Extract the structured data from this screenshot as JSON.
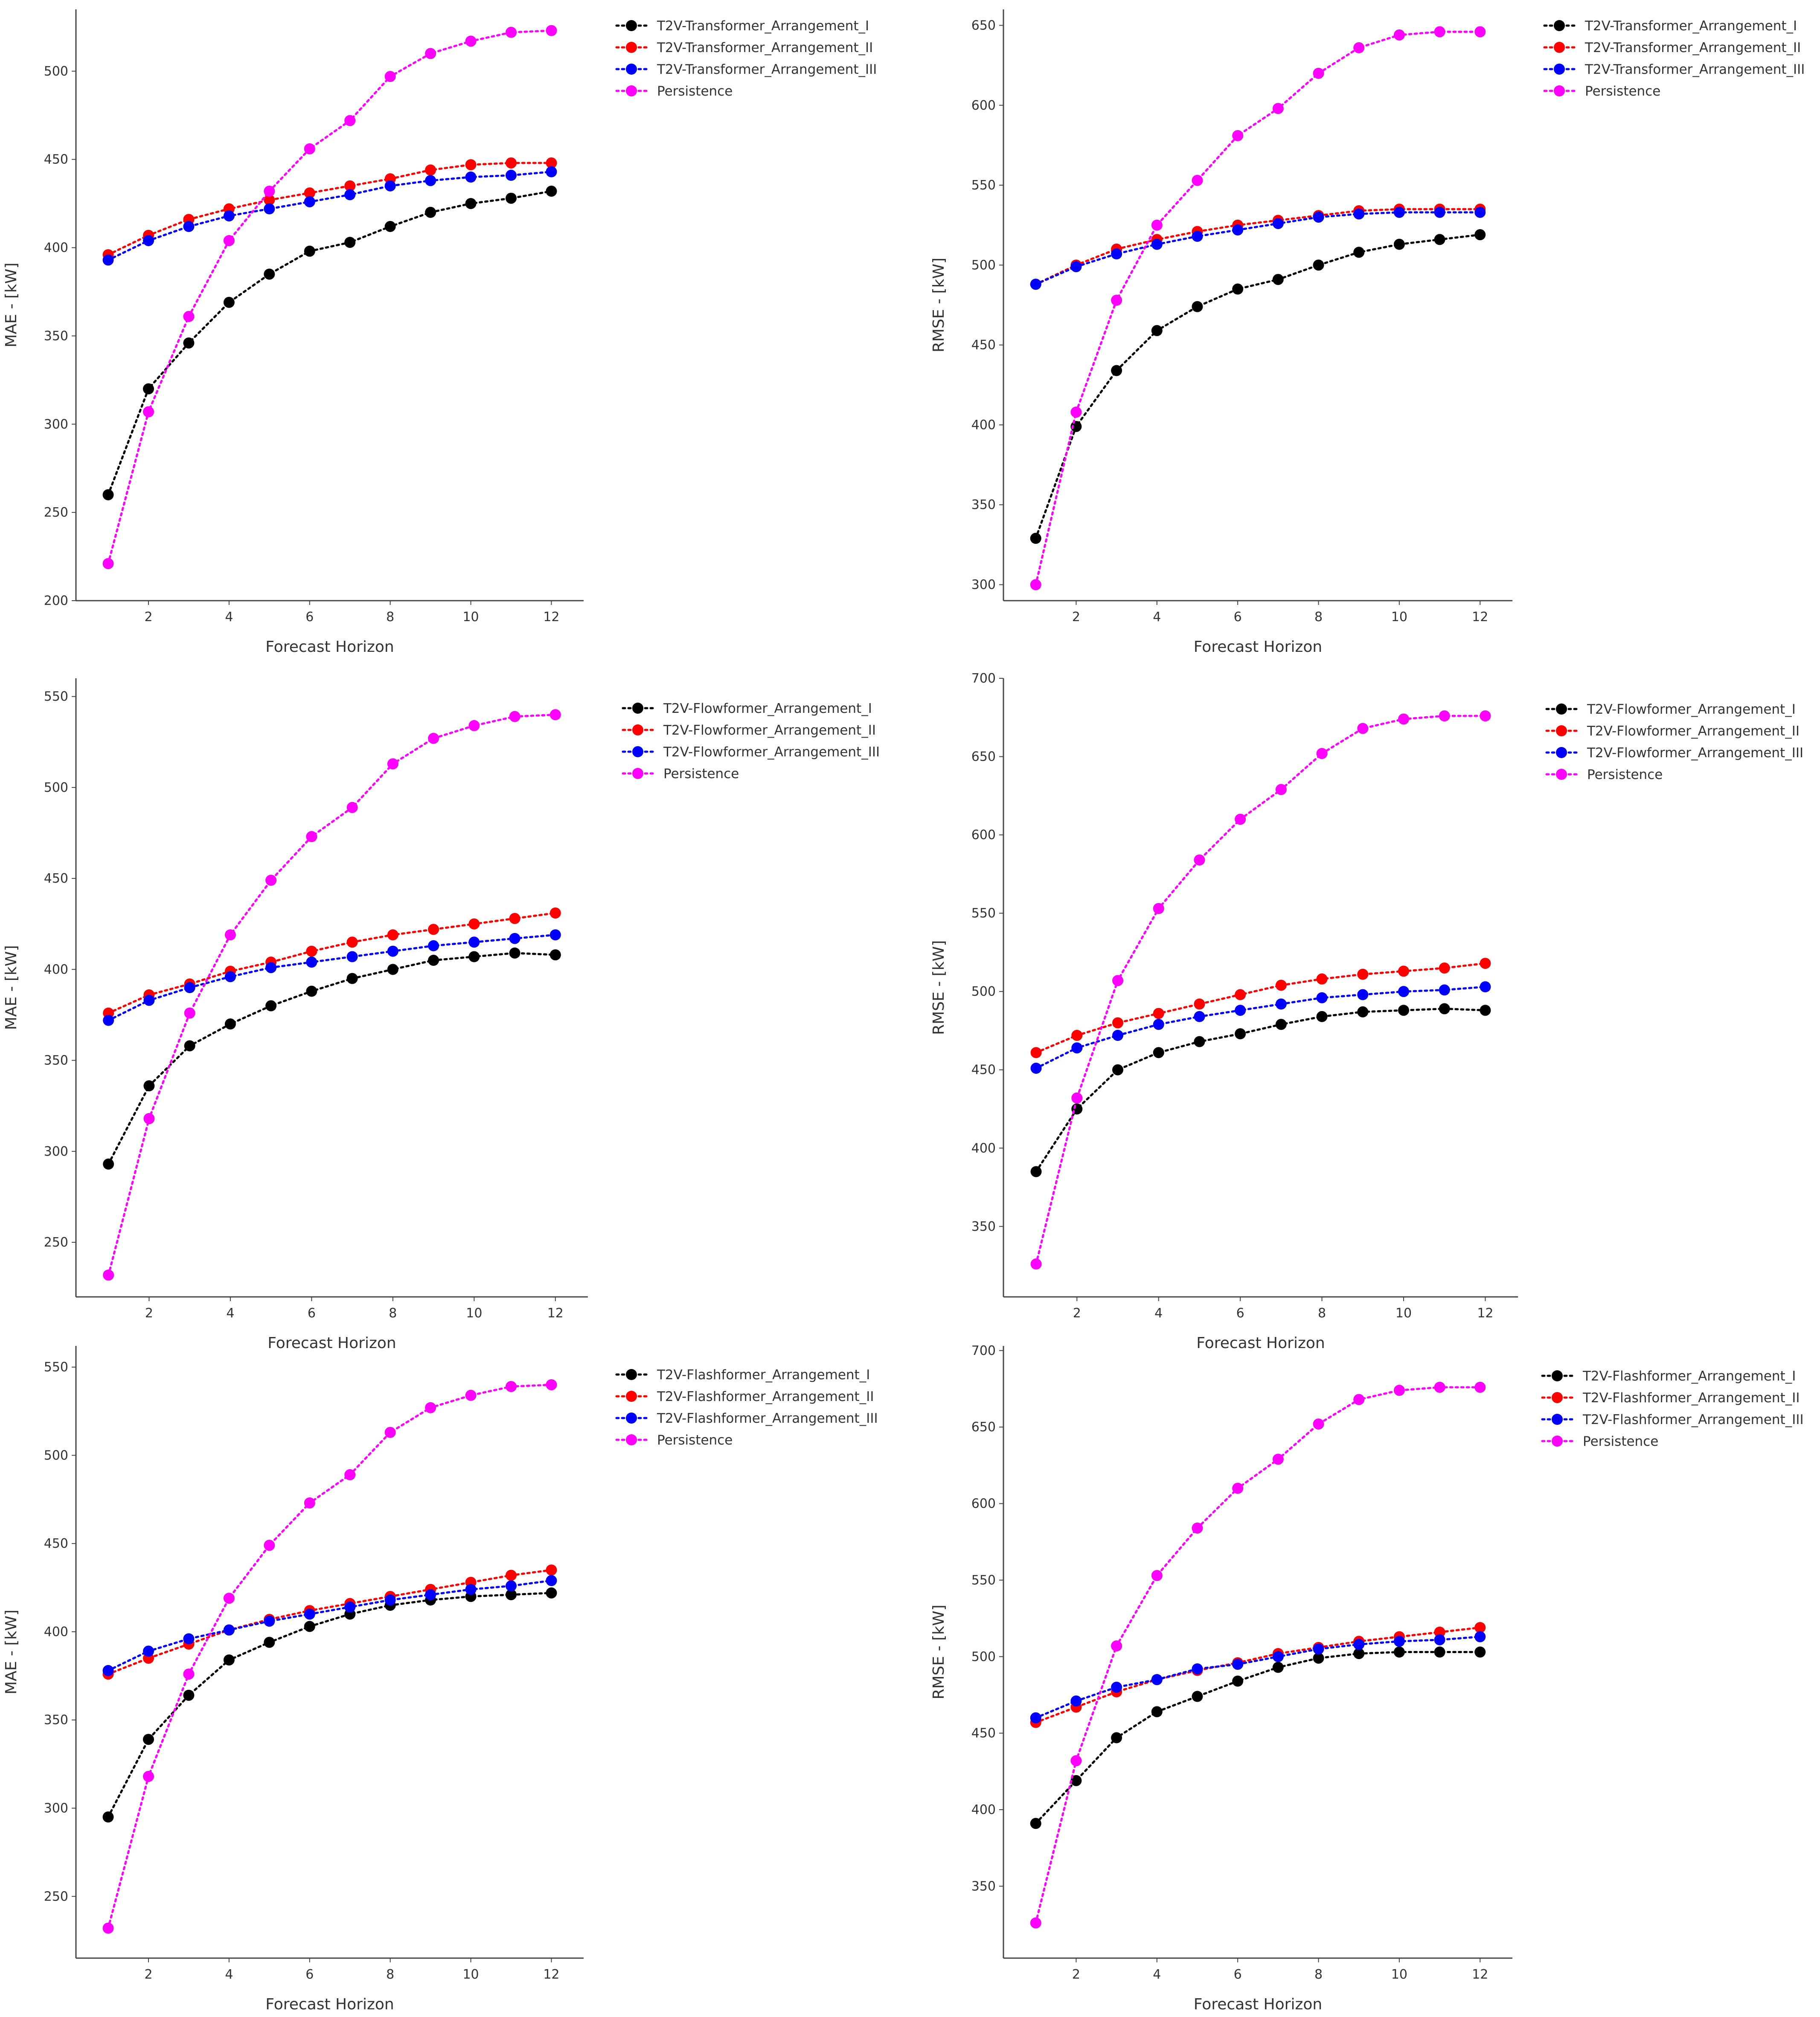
{
  "figure": {
    "background": "#ffffff",
    "axis_color": "#444444"
  },
  "series_styles": [
    {
      "color": "#000000",
      "dash": "dotted"
    },
    {
      "color": "#ff0000",
      "dash": "dotted"
    },
    {
      "color": "#0000ff",
      "dash": "dotted"
    },
    {
      "color": "#ff00ff",
      "dash": "dotted"
    }
  ],
  "chart_data": [
    {
      "type": "line",
      "x": [
        1,
        2,
        3,
        4,
        5,
        6,
        7,
        8,
        9,
        10,
        11,
        12
      ],
      "xlabel": "Forecast Horizon",
      "ylabel": "MAE - [kW]",
      "xlim": [
        0.2,
        12.8
      ],
      "ylim": [
        200,
        535
      ],
      "xticks": [
        2,
        4,
        6,
        8,
        10,
        12
      ],
      "yticks": [
        200,
        250,
        300,
        350,
        400,
        450,
        500
      ],
      "grid": false,
      "legend_position": "top-right-outside",
      "series": [
        {
          "name": "T2V-Transformer_Arrangement_I",
          "values": [
            260,
            320,
            346,
            369,
            385,
            398,
            403,
            412,
            420,
            425,
            428,
            432
          ]
        },
        {
          "name": "T2V-Transformer_Arrangement_II",
          "values": [
            396,
            407,
            416,
            422,
            427,
            431,
            435,
            439,
            444,
            447,
            448,
            448
          ]
        },
        {
          "name": "T2V-Transformer_Arrangement_III",
          "values": [
            393,
            404,
            412,
            418,
            422,
            426,
            430,
            435,
            438,
            440,
            441,
            443
          ]
        },
        {
          "name": "Persistence",
          "values": [
            221,
            307,
            361,
            404,
            432,
            456,
            472,
            497,
            510,
            517,
            522,
            523
          ]
        }
      ]
    },
    {
      "type": "line",
      "x": [
        1,
        2,
        3,
        4,
        5,
        6,
        7,
        8,
        9,
        10,
        11,
        12
      ],
      "xlabel": "Forecast Horizon",
      "ylabel": "RMSE - [kW]",
      "xlim": [
        0.2,
        12.8
      ],
      "ylim": [
        290,
        660
      ],
      "xticks": [
        2,
        4,
        6,
        8,
        10,
        12
      ],
      "yticks": [
        300,
        350,
        400,
        450,
        500,
        550,
        600,
        650
      ],
      "grid": false,
      "legend_position": "top-right-outside",
      "series": [
        {
          "name": "T2V-Transformer_Arrangement_I",
          "values": [
            329,
            399,
            434,
            459,
            474,
            485,
            491,
            500,
            508,
            513,
            516,
            519
          ]
        },
        {
          "name": "T2V-Transformer_Arrangement_II",
          "values": [
            488,
            500,
            510,
            516,
            521,
            525,
            528,
            531,
            534,
            535,
            535,
            535
          ]
        },
        {
          "name": "T2V-Transformer_Arrangement_III",
          "values": [
            488,
            499,
            507,
            513,
            518,
            522,
            526,
            530,
            532,
            533,
            533,
            533
          ]
        },
        {
          "name": "Persistence",
          "values": [
            300,
            408,
            478,
            525,
            553,
            581,
            598,
            620,
            636,
            644,
            646,
            646
          ]
        }
      ]
    },
    {
      "type": "line",
      "x": [
        1,
        2,
        3,
        4,
        5,
        6,
        7,
        8,
        9,
        10,
        11,
        12
      ],
      "xlabel": "Forecast Horizon",
      "ylabel": "MAE - [kW]",
      "xlim": [
        0.2,
        12.8
      ],
      "ylim": [
        220,
        560
      ],
      "xticks": [
        2,
        4,
        6,
        8,
        10,
        12
      ],
      "yticks": [
        250,
        300,
        350,
        400,
        450,
        500,
        550
      ],
      "grid": false,
      "legend_position": "top-right-outside",
      "series": [
        {
          "name": "T2V-Flowformer_Arrangement_I",
          "values": [
            293,
            336,
            358,
            370,
            380,
            388,
            395,
            400,
            405,
            407,
            409,
            408
          ]
        },
        {
          "name": "T2V-Flowformer_Arrangement_II",
          "values": [
            376,
            386,
            392,
            399,
            404,
            410,
            415,
            419,
            422,
            425,
            428,
            431
          ]
        },
        {
          "name": "T2V-Flowformer_Arrangement_III",
          "values": [
            372,
            383,
            390,
            396,
            401,
            404,
            407,
            410,
            413,
            415,
            417,
            419
          ]
        },
        {
          "name": "Persistence",
          "values": [
            232,
            318,
            376,
            419,
            449,
            473,
            489,
            513,
            527,
            534,
            539,
            540
          ]
        }
      ]
    },
    {
      "type": "line",
      "x": [
        1,
        2,
        3,
        4,
        5,
        6,
        7,
        8,
        9,
        10,
        11,
        12
      ],
      "xlabel": "Forecast Horizon",
      "ylabel": "RMSE - [kW]",
      "xlim": [
        0.2,
        12.8
      ],
      "ylim": [
        305,
        700
      ],
      "xticks": [
        2,
        4,
        6,
        8,
        10,
        12
      ],
      "yticks": [
        350,
        400,
        450,
        500,
        550,
        600,
        650,
        700
      ],
      "grid": false,
      "legend_position": "top-right-outside",
      "series": [
        {
          "name": "T2V-Flowformer_Arrangement_I",
          "values": [
            385,
            425,
            450,
            461,
            468,
            473,
            479,
            484,
            487,
            488,
            489,
            488
          ]
        },
        {
          "name": "T2V-Flowformer_Arrangement_II",
          "values": [
            461,
            472,
            480,
            486,
            492,
            498,
            504,
            508,
            511,
            513,
            515,
            518
          ]
        },
        {
          "name": "T2V-Flowformer_Arrangement_III",
          "values": [
            451,
            464,
            472,
            479,
            484,
            488,
            492,
            496,
            498,
            500,
            501,
            503
          ]
        },
        {
          "name": "Persistence",
          "values": [
            326,
            432,
            507,
            553,
            584,
            610,
            629,
            652,
            668,
            674,
            676,
            676
          ]
        }
      ]
    },
    {
      "type": "line",
      "x": [
        1,
        2,
        3,
        4,
        5,
        6,
        7,
        8,
        9,
        10,
        11,
        12
      ],
      "xlabel": "Forecast Horizon",
      "ylabel": "MAE - [kW]",
      "xlim": [
        0.2,
        12.8
      ],
      "ylim": [
        215,
        562
      ],
      "xticks": [
        2,
        4,
        6,
        8,
        10,
        12
      ],
      "yticks": [
        250,
        300,
        350,
        400,
        450,
        500,
        550
      ],
      "grid": false,
      "legend_position": "top-right-outside",
      "series": [
        {
          "name": "T2V-Flashformer_Arrangement_I",
          "values": [
            295,
            339,
            364,
            384,
            394,
            403,
            410,
            415,
            418,
            420,
            421,
            422
          ]
        },
        {
          "name": "T2V-Flashformer_Arrangement_II",
          "values": [
            376,
            385,
            393,
            401,
            407,
            412,
            416,
            420,
            424,
            428,
            432,
            435
          ]
        },
        {
          "name": "T2V-Flashformer_Arrangement_III",
          "values": [
            378,
            389,
            396,
            401,
            406,
            410,
            414,
            418,
            421,
            424,
            426,
            429
          ]
        },
        {
          "name": "Persistence",
          "values": [
            232,
            318,
            376,
            419,
            449,
            473,
            489,
            513,
            527,
            534,
            539,
            540
          ]
        }
      ]
    },
    {
      "type": "line",
      "x": [
        1,
        2,
        3,
        4,
        5,
        6,
        7,
        8,
        9,
        10,
        11,
        12
      ],
      "xlabel": "Forecast Horizon",
      "ylabel": "RMSE - [kW]",
      "xlim": [
        0.2,
        12.8
      ],
      "ylim": [
        303,
        703
      ],
      "xticks": [
        2,
        4,
        6,
        8,
        10,
        12
      ],
      "yticks": [
        350,
        400,
        450,
        500,
        550,
        600,
        650,
        700
      ],
      "grid": false,
      "legend_position": "top-right-outside",
      "series": [
        {
          "name": "T2V-Flashformer_Arrangement_I",
          "values": [
            391,
            419,
            447,
            464,
            474,
            484,
            493,
            499,
            502,
            503,
            503,
            503
          ]
        },
        {
          "name": "T2V-Flashformer_Arrangement_II",
          "values": [
            457,
            467,
            477,
            485,
            491,
            496,
            502,
            506,
            510,
            513,
            516,
            519
          ]
        },
        {
          "name": "T2V-Flashformer_Arrangement_III",
          "values": [
            460,
            471,
            480,
            485,
            492,
            495,
            500,
            505,
            508,
            510,
            511,
            513
          ]
        },
        {
          "name": "Persistence",
          "values": [
            326,
            432,
            507,
            553,
            584,
            610,
            629,
            652,
            668,
            674,
            676,
            676
          ]
        }
      ]
    }
  ]
}
